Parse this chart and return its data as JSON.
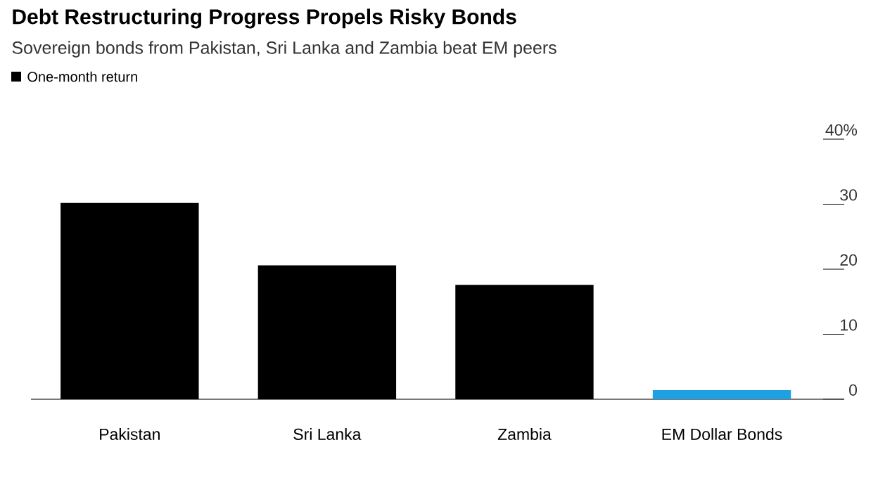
{
  "chart_data": {
    "type": "bar",
    "title": "Debt Restructuring Progress Propels Risky Bonds",
    "subtitle": "Sovereign bonds from Pakistan, Sri Lanka and Zambia beat EM peers",
    "categories": [
      "Pakistan",
      "Sri Lanka",
      "Zambia",
      "EM Dollar Bonds"
    ],
    "series": [
      {
        "name": "One-month return",
        "color": "#000000",
        "colors": [
          "#000000",
          "#000000",
          "#000000",
          "#1da1e2"
        ],
        "values": [
          30.2,
          20.6,
          17.6,
          1.4
        ]
      }
    ],
    "ylim": [
      0,
      40
    ],
    "yticks": [
      0,
      10,
      20,
      30,
      {
        "value": 40,
        "label": "40%"
      }
    ],
    "legend": "top left"
  }
}
